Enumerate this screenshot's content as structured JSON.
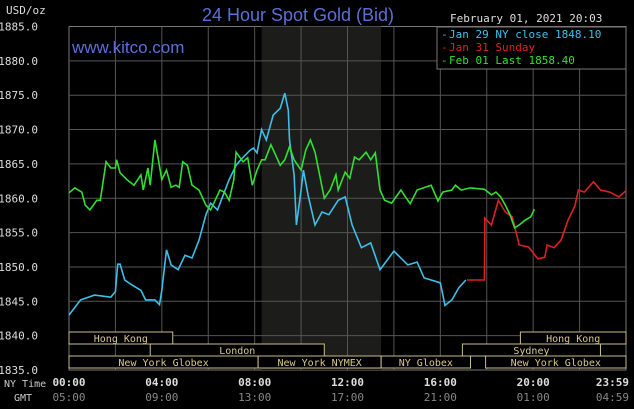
{
  "chart_data": {
    "type": "line",
    "title": "24 Hour Spot Gold (Bid)",
    "ylabel": "USD/oz",
    "watermark": "www.kitco.com",
    "timestamp": "February 01, 2021 20:03",
    "ylim": [
      1835,
      1885
    ],
    "xlim": [
      0,
      24
    ],
    "grid": true,
    "y_ticks": [
      1835,
      1840,
      1845,
      1850,
      1855,
      1860,
      1865,
      1870,
      1875,
      1880,
      1885
    ],
    "y_tick_labels": [
      "1835.0",
      "1840.0",
      "1845.0",
      "1850.0",
      "1855.0",
      "1860.0",
      "1865.0",
      "1870.0",
      "1875.0",
      "1880.0",
      "1885.0"
    ],
    "x_row_labels": {
      "ny": "NY Time",
      "gmt": "GMT"
    },
    "x_ticks": [
      0,
      4,
      8,
      12,
      16,
      20,
      24
    ],
    "x_tick_labels_ny": [
      "00:00",
      "04:00",
      "08:00",
      "12:00",
      "16:00",
      "20:00",
      "23:59"
    ],
    "x_tick_labels_gmt": [
      "05:00",
      "09:00",
      "13:00",
      "17:00",
      "21:00",
      "01:00",
      "04:59"
    ],
    "shaded_hours": [
      8.3,
      13.45
    ],
    "legend_position": "top-right",
    "series": [
      {
        "name": "Jan 29 NY close 1848.10",
        "color": "#3cc0e8",
        "points": [
          [
            0,
            1843.0
          ],
          [
            0.5,
            1845.2
          ],
          [
            1.1,
            1845.9
          ],
          [
            1.8,
            1845.6
          ],
          [
            2.0,
            1846.4
          ],
          [
            2.1,
            1850.4
          ],
          [
            2.2,
            1850.4
          ],
          [
            2.4,
            1848.1
          ],
          [
            2.7,
            1847.4
          ],
          [
            3.1,
            1846.6
          ],
          [
            3.3,
            1845.2
          ],
          [
            3.7,
            1845.2
          ],
          [
            3.9,
            1844.5
          ],
          [
            4.0,
            1846.6
          ],
          [
            4.2,
            1852.5
          ],
          [
            4.4,
            1850.3
          ],
          [
            4.7,
            1849.6
          ],
          [
            5.0,
            1851.7
          ],
          [
            5.3,
            1851.3
          ],
          [
            5.6,
            1853.9
          ],
          [
            5.9,
            1857.6
          ],
          [
            6.1,
            1859.3
          ],
          [
            6.4,
            1858.3
          ],
          [
            6.9,
            1862.7
          ],
          [
            7.2,
            1864.8
          ],
          [
            7.4,
            1865.6
          ],
          [
            7.8,
            1867.0
          ],
          [
            7.95,
            1867.3
          ],
          [
            8.1,
            1866.6
          ],
          [
            8.3,
            1870.0
          ],
          [
            8.5,
            1868.5
          ],
          [
            8.8,
            1872.1
          ],
          [
            9.1,
            1873.1
          ],
          [
            9.3,
            1875.3
          ],
          [
            9.45,
            1872.8
          ],
          [
            9.5,
            1868.5
          ],
          [
            9.7,
            1863.4
          ],
          [
            9.8,
            1856.1
          ],
          [
            10.0,
            1861.2
          ],
          [
            10.1,
            1864.1
          ],
          [
            10.3,
            1860.5
          ],
          [
            10.6,
            1856.1
          ],
          [
            10.9,
            1858.0
          ],
          [
            11.2,
            1857.6
          ],
          [
            11.6,
            1859.7
          ],
          [
            11.9,
            1860.2
          ],
          [
            12.2,
            1856.1
          ],
          [
            12.6,
            1852.8
          ],
          [
            13.0,
            1853.5
          ],
          [
            13.4,
            1849.6
          ],
          [
            14.0,
            1852.3
          ],
          [
            14.6,
            1850.3
          ],
          [
            15.0,
            1850.7
          ],
          [
            15.3,
            1848.4
          ],
          [
            16.0,
            1847.7
          ],
          [
            16.2,
            1844.4
          ],
          [
            16.5,
            1845.2
          ],
          [
            16.8,
            1847.0
          ],
          [
            17.1,
            1848.1
          ]
        ]
      },
      {
        "name": "Jan 31 Sunday",
        "color": "#e02020",
        "points": [
          [
            17.15,
            1848.1
          ],
          [
            17.9,
            1848.1
          ],
          [
            17.92,
            1857.1
          ],
          [
            18.2,
            1856.1
          ],
          [
            18.5,
            1859.7
          ],
          [
            18.8,
            1858.0
          ],
          [
            19.1,
            1857.3
          ],
          [
            19.4,
            1853.2
          ],
          [
            19.8,
            1852.9
          ],
          [
            20.2,
            1851.2
          ],
          [
            20.5,
            1851.4
          ],
          [
            20.6,
            1853.2
          ],
          [
            20.9,
            1852.8
          ],
          [
            21.2,
            1853.9
          ],
          [
            21.5,
            1856.8
          ],
          [
            21.8,
            1858.9
          ],
          [
            21.95,
            1861.2
          ],
          [
            22.2,
            1860.9
          ],
          [
            22.6,
            1862.4
          ],
          [
            22.9,
            1861.2
          ],
          [
            23.3,
            1860.9
          ],
          [
            23.7,
            1860.2
          ],
          [
            24,
            1861.1
          ]
        ]
      },
      {
        "name": "Feb 01 Last 1858.40",
        "color": "#30e030",
        "points": [
          [
            0,
            1860.8
          ],
          [
            0.25,
            1861.5
          ],
          [
            0.55,
            1860.9
          ],
          [
            0.7,
            1859.0
          ],
          [
            0.9,
            1858.3
          ],
          [
            1.2,
            1859.7
          ],
          [
            1.35,
            1859.7
          ],
          [
            1.6,
            1865.3
          ],
          [
            1.8,
            1864.4
          ],
          [
            2.0,
            1864.4
          ],
          [
            2.05,
            1865.6
          ],
          [
            2.2,
            1863.7
          ],
          [
            2.5,
            1862.7
          ],
          [
            2.8,
            1861.9
          ],
          [
            3.1,
            1863.4
          ],
          [
            3.2,
            1861.2
          ],
          [
            3.4,
            1864.4
          ],
          [
            3.5,
            1861.9
          ],
          [
            3.7,
            1868.5
          ],
          [
            3.85,
            1865.6
          ],
          [
            4.0,
            1862.7
          ],
          [
            4.2,
            1864.1
          ],
          [
            4.4,
            1861.6
          ],
          [
            4.6,
            1861.9
          ],
          [
            4.75,
            1861.6
          ],
          [
            4.9,
            1865.3
          ],
          [
            5.1,
            1864.8
          ],
          [
            5.3,
            1861.9
          ],
          [
            5.6,
            1861.2
          ],
          [
            5.9,
            1859.0
          ],
          [
            6.1,
            1858.3
          ],
          [
            6.3,
            1859.7
          ],
          [
            6.5,
            1861.2
          ],
          [
            6.7,
            1860.9
          ],
          [
            6.9,
            1859.7
          ],
          [
            7.1,
            1862.7
          ],
          [
            7.2,
            1866.7
          ],
          [
            7.5,
            1865.3
          ],
          [
            7.7,
            1865.9
          ],
          [
            7.9,
            1861.9
          ],
          [
            8.1,
            1864.1
          ],
          [
            8.3,
            1865.6
          ],
          [
            8.45,
            1865.6
          ],
          [
            8.7,
            1867.8
          ],
          [
            8.9,
            1866.3
          ],
          [
            9.1,
            1864.8
          ],
          [
            9.3,
            1865.6
          ],
          [
            9.5,
            1867.5
          ],
          [
            9.7,
            1865.6
          ],
          [
            10.0,
            1864.1
          ],
          [
            10.2,
            1867.0
          ],
          [
            10.4,
            1868.5
          ],
          [
            10.6,
            1866.7
          ],
          [
            10.8,
            1863.4
          ],
          [
            11.0,
            1860.0
          ],
          [
            11.25,
            1861.2
          ],
          [
            11.5,
            1863.4
          ],
          [
            11.6,
            1861.2
          ],
          [
            11.9,
            1863.8
          ],
          [
            12.1,
            1862.9
          ],
          [
            12.3,
            1866.0
          ],
          [
            12.5,
            1865.6
          ],
          [
            12.8,
            1866.7
          ],
          [
            13.0,
            1865.6
          ],
          [
            13.2,
            1866.6
          ],
          [
            13.4,
            1861.2
          ],
          [
            13.6,
            1859.7
          ],
          [
            13.9,
            1859.3
          ],
          [
            14.3,
            1861.2
          ],
          [
            14.5,
            1860.2
          ],
          [
            14.7,
            1859.2
          ],
          [
            15.0,
            1861.2
          ],
          [
            15.6,
            1861.9
          ],
          [
            15.9,
            1859.6
          ],
          [
            16.1,
            1860.9
          ],
          [
            16.5,
            1861.2
          ],
          [
            16.65,
            1861.9
          ],
          [
            16.9,
            1861.2
          ],
          [
            17.3,
            1861.5
          ],
          [
            17.9,
            1861.3
          ],
          [
            18.2,
            1860.5
          ],
          [
            18.4,
            1860.9
          ],
          [
            18.6,
            1860.2
          ],
          [
            18.8,
            1859.0
          ],
          [
            19.0,
            1857.6
          ],
          [
            19.2,
            1855.7
          ],
          [
            19.4,
            1856.1
          ],
          [
            19.65,
            1856.8
          ],
          [
            19.9,
            1857.3
          ],
          [
            20.05,
            1858.4
          ]
        ]
      }
    ],
    "sessions": [
      {
        "label": "Hong Kong",
        "start": 0,
        "end": 4.47,
        "row": 1
      },
      {
        "label": "Hong Kong",
        "start": 19.45,
        "end": 24,
        "row": 1
      },
      {
        "label": "London",
        "start": 3.5,
        "end": 11.0,
        "row": 2
      },
      {
        "label": "Sydney",
        "start": 16.95,
        "end": 22.9,
        "row": 2
      },
      {
        "label": "New York Globex",
        "start": 0,
        "end": 8.15,
        "row": 3
      },
      {
        "label": "New York NYMEX",
        "start": 8.15,
        "end": 13.45,
        "row": 3
      },
      {
        "label": "NY Globex",
        "start": 13.45,
        "end": 17.3,
        "row": 3
      },
      {
        "label": "New York Globex",
        "start": 17.95,
        "end": 24,
        "row": 3
      }
    ]
  }
}
